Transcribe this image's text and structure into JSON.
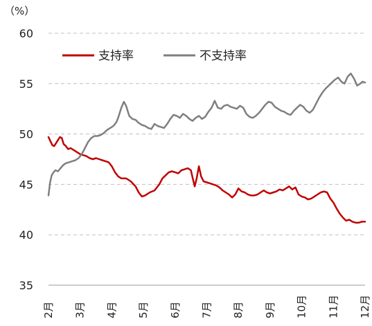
{
  "chart_data": {
    "type": "line",
    "unit_label": "（%）",
    "ylim": [
      35,
      60
    ],
    "yticks": [
      35,
      40,
      45,
      50,
      55,
      60
    ],
    "grid": true,
    "legend_position": "top-left",
    "x_months": [
      "2月",
      "3月",
      "4月",
      "5月",
      "6月",
      "7月",
      "8月",
      "9月",
      "10月",
      "11月",
      "12月"
    ],
    "x_range": [
      1,
      11
    ],
    "series": [
      {
        "name": "支持率",
        "color": "#c00000",
        "points": [
          [
            1.0,
            49.7
          ],
          [
            1.06,
            49.3
          ],
          [
            1.12,
            48.9
          ],
          [
            1.18,
            48.8
          ],
          [
            1.24,
            49.1
          ],
          [
            1.3,
            49.4
          ],
          [
            1.36,
            49.7
          ],
          [
            1.42,
            49.6
          ],
          [
            1.48,
            49.0
          ],
          [
            1.55,
            48.8
          ],
          [
            1.62,
            48.5
          ],
          [
            1.7,
            48.6
          ],
          [
            1.8,
            48.4
          ],
          [
            1.9,
            48.2
          ],
          [
            2.0,
            48.0
          ],
          [
            2.1,
            47.9
          ],
          [
            2.2,
            47.8
          ],
          [
            2.3,
            47.6
          ],
          [
            2.4,
            47.5
          ],
          [
            2.5,
            47.6
          ],
          [
            2.6,
            47.5
          ],
          [
            2.7,
            47.4
          ],
          [
            2.8,
            47.3
          ],
          [
            2.9,
            47.2
          ],
          [
            3.0,
            46.8
          ],
          [
            3.1,
            46.2
          ],
          [
            3.2,
            45.8
          ],
          [
            3.3,
            45.6
          ],
          [
            3.45,
            45.6
          ],
          [
            3.6,
            45.3
          ],
          [
            3.75,
            44.8
          ],
          [
            3.85,
            44.2
          ],
          [
            3.95,
            43.8
          ],
          [
            4.05,
            43.9
          ],
          [
            4.2,
            44.2
          ],
          [
            4.35,
            44.4
          ],
          [
            4.5,
            45.0
          ],
          [
            4.6,
            45.6
          ],
          [
            4.7,
            45.9
          ],
          [
            4.8,
            46.2
          ],
          [
            4.9,
            46.3
          ],
          [
            5.0,
            46.2
          ],
          [
            5.1,
            46.1
          ],
          [
            5.2,
            46.4
          ],
          [
            5.3,
            46.5
          ],
          [
            5.4,
            46.6
          ],
          [
            5.5,
            46.4
          ],
          [
            5.55,
            45.7
          ],
          [
            5.62,
            44.8
          ],
          [
            5.68,
            45.6
          ],
          [
            5.75,
            46.8
          ],
          [
            5.82,
            45.8
          ],
          [
            5.9,
            45.3
          ],
          [
            6.0,
            45.2
          ],
          [
            6.1,
            45.1
          ],
          [
            6.2,
            45.0
          ],
          [
            6.3,
            44.9
          ],
          [
            6.4,
            44.7
          ],
          [
            6.5,
            44.4
          ],
          [
            6.6,
            44.2
          ],
          [
            6.7,
            44.0
          ],
          [
            6.8,
            43.7
          ],
          [
            6.9,
            44.0
          ],
          [
            7.0,
            44.6
          ],
          [
            7.1,
            44.3
          ],
          [
            7.2,
            44.2
          ],
          [
            7.3,
            44.0
          ],
          [
            7.4,
            43.9
          ],
          [
            7.5,
            43.9
          ],
          [
            7.6,
            44.0
          ],
          [
            7.7,
            44.2
          ],
          [
            7.8,
            44.4
          ],
          [
            7.9,
            44.2
          ],
          [
            8.0,
            44.1
          ],
          [
            8.1,
            44.2
          ],
          [
            8.2,
            44.3
          ],
          [
            8.3,
            44.5
          ],
          [
            8.4,
            44.4
          ],
          [
            8.5,
            44.6
          ],
          [
            8.6,
            44.8
          ],
          [
            8.7,
            44.5
          ],
          [
            8.8,
            44.7
          ],
          [
            8.9,
            44.0
          ],
          [
            9.0,
            43.8
          ],
          [
            9.1,
            43.7
          ],
          [
            9.2,
            43.5
          ],
          [
            9.3,
            43.6
          ],
          [
            9.4,
            43.8
          ],
          [
            9.5,
            44.0
          ],
          [
            9.6,
            44.2
          ],
          [
            9.7,
            44.3
          ],
          [
            9.8,
            44.2
          ],
          [
            9.9,
            43.6
          ],
          [
            10.0,
            43.2
          ],
          [
            10.1,
            42.6
          ],
          [
            10.2,
            42.1
          ],
          [
            10.3,
            41.7
          ],
          [
            10.4,
            41.4
          ],
          [
            10.5,
            41.5
          ],
          [
            10.6,
            41.3
          ],
          [
            10.7,
            41.2
          ],
          [
            10.8,
            41.2
          ],
          [
            10.9,
            41.3
          ],
          [
            11.0,
            41.3
          ]
        ]
      },
      {
        "name": "不支持率",
        "color": "#7f7f7f",
        "points": [
          [
            1.0,
            43.9
          ],
          [
            1.05,
            45.2
          ],
          [
            1.1,
            45.9
          ],
          [
            1.16,
            46.2
          ],
          [
            1.22,
            46.4
          ],
          [
            1.3,
            46.3
          ],
          [
            1.38,
            46.6
          ],
          [
            1.46,
            46.9
          ],
          [
            1.55,
            47.1
          ],
          [
            1.65,
            47.2
          ],
          [
            1.75,
            47.3
          ],
          [
            1.85,
            47.4
          ],
          [
            1.95,
            47.6
          ],
          [
            2.05,
            48.0
          ],
          [
            2.15,
            48.6
          ],
          [
            2.25,
            49.2
          ],
          [
            2.35,
            49.6
          ],
          [
            2.45,
            49.8
          ],
          [
            2.55,
            49.8
          ],
          [
            2.65,
            49.9
          ],
          [
            2.75,
            50.1
          ],
          [
            2.85,
            50.4
          ],
          [
            2.95,
            50.6
          ],
          [
            3.05,
            50.8
          ],
          [
            3.15,
            51.2
          ],
          [
            3.22,
            51.8
          ],
          [
            3.3,
            52.6
          ],
          [
            3.38,
            53.2
          ],
          [
            3.45,
            52.8
          ],
          [
            3.55,
            51.8
          ],
          [
            3.65,
            51.5
          ],
          [
            3.75,
            51.4
          ],
          [
            3.85,
            51.1
          ],
          [
            3.95,
            50.9
          ],
          [
            4.05,
            50.8
          ],
          [
            4.15,
            50.6
          ],
          [
            4.25,
            50.5
          ],
          [
            4.35,
            51.0
          ],
          [
            4.45,
            50.8
          ],
          [
            4.55,
            50.7
          ],
          [
            4.65,
            50.6
          ],
          [
            4.75,
            51.0
          ],
          [
            4.85,
            51.5
          ],
          [
            4.95,
            51.9
          ],
          [
            5.05,
            51.8
          ],
          [
            5.15,
            51.6
          ],
          [
            5.25,
            52.0
          ],
          [
            5.35,
            51.8
          ],
          [
            5.45,
            51.5
          ],
          [
            5.55,
            51.3
          ],
          [
            5.65,
            51.6
          ],
          [
            5.75,
            51.8
          ],
          [
            5.85,
            51.5
          ],
          [
            5.95,
            51.7
          ],
          [
            6.05,
            52.2
          ],
          [
            6.15,
            52.6
          ],
          [
            6.25,
            53.3
          ],
          [
            6.35,
            52.6
          ],
          [
            6.45,
            52.5
          ],
          [
            6.55,
            52.8
          ],
          [
            6.65,
            52.9
          ],
          [
            6.75,
            52.7
          ],
          [
            6.85,
            52.6
          ],
          [
            6.95,
            52.5
          ],
          [
            7.05,
            52.8
          ],
          [
            7.15,
            52.6
          ],
          [
            7.25,
            52.0
          ],
          [
            7.35,
            51.7
          ],
          [
            7.45,
            51.6
          ],
          [
            7.55,
            51.8
          ],
          [
            7.65,
            52.1
          ],
          [
            7.75,
            52.5
          ],
          [
            7.85,
            52.9
          ],
          [
            7.95,
            53.2
          ],
          [
            8.05,
            53.1
          ],
          [
            8.15,
            52.7
          ],
          [
            8.25,
            52.5
          ],
          [
            8.35,
            52.3
          ],
          [
            8.45,
            52.2
          ],
          [
            8.55,
            52.0
          ],
          [
            8.65,
            51.9
          ],
          [
            8.75,
            52.3
          ],
          [
            8.85,
            52.6
          ],
          [
            8.95,
            52.9
          ],
          [
            9.05,
            52.7
          ],
          [
            9.15,
            52.3
          ],
          [
            9.25,
            52.1
          ],
          [
            9.35,
            52.4
          ],
          [
            9.45,
            53.0
          ],
          [
            9.55,
            53.6
          ],
          [
            9.65,
            54.1
          ],
          [
            9.75,
            54.5
          ],
          [
            9.85,
            54.8
          ],
          [
            9.95,
            55.1
          ],
          [
            10.05,
            55.4
          ],
          [
            10.15,
            55.6
          ],
          [
            10.25,
            55.2
          ],
          [
            10.35,
            55.0
          ],
          [
            10.45,
            55.7
          ],
          [
            10.55,
            56.0
          ],
          [
            10.65,
            55.5
          ],
          [
            10.75,
            54.8
          ],
          [
            10.85,
            55.0
          ],
          [
            10.92,
            55.2
          ],
          [
            11.0,
            55.1
          ]
        ]
      }
    ]
  }
}
